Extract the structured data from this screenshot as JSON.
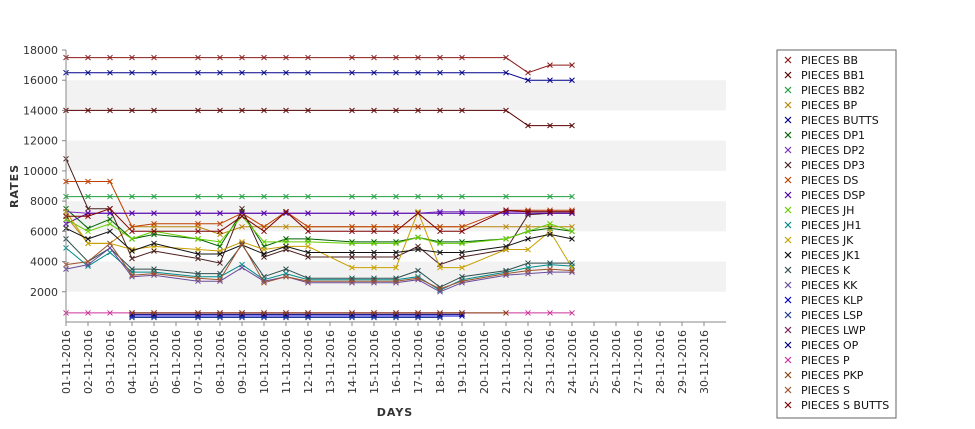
{
  "chart_data": {
    "type": "line",
    "title": "",
    "xlabel": "DAYS",
    "ylabel": "RATES",
    "ylim": [
      0,
      18000
    ],
    "yticks": [
      2000,
      4000,
      6000,
      8000,
      10000,
      12000,
      14000,
      16000,
      18000
    ],
    "grid": "alternating horizontal bands",
    "legend_position": "right",
    "categories": [
      "01-11-2016",
      "02-11-2016",
      "03-11-2016",
      "04-11-2016",
      "05-11-2016",
      "06-11-2016",
      "07-11-2016",
      "08-11-2016",
      "09-11-2016",
      "10-11-2016",
      "11-11-2016",
      "12-11-2016",
      "13-11-2016",
      "14-11-2016",
      "15-11-2016",
      "16-11-2016",
      "17-11-2016",
      "18-11-2016",
      "19-11-2016",
      "20-11-2016",
      "21-11-2016",
      "22-11-2016",
      "23-11-2016",
      "24-11-2016",
      "25-11-2016",
      "26-11-2016",
      "27-11-2016",
      "28-11-2016",
      "29-11-2016",
      "30-11-2016"
    ],
    "series": [
      {
        "name": "PIECES BB",
        "color": "#8B1A1A",
        "values": [
          17500,
          17500,
          17500,
          17500,
          17500,
          null,
          17500,
          17500,
          17500,
          17500,
          17500,
          17500,
          null,
          17500,
          17500,
          17500,
          17500,
          17500,
          17500,
          null,
          17500,
          16500,
          17000,
          17000,
          null,
          null,
          null,
          null,
          null,
          null
        ]
      },
      {
        "name": "PIECES BB1",
        "color": "#5A0000",
        "values": [
          14000,
          14000,
          14000,
          14000,
          14000,
          null,
          14000,
          14000,
          14000,
          14000,
          14000,
          14000,
          null,
          14000,
          14000,
          14000,
          14000,
          14000,
          14000,
          null,
          14000,
          13000,
          13000,
          13000,
          null,
          null,
          null,
          null,
          null,
          null
        ]
      },
      {
        "name": "PIECES BB2",
        "color": "#1E9E3C",
        "values": [
          8300,
          8300,
          8300,
          8300,
          8300,
          null,
          8300,
          8300,
          8300,
          8300,
          8300,
          8300,
          null,
          8300,
          8300,
          8300,
          8300,
          8300,
          8300,
          null,
          8300,
          null,
          8300,
          8300,
          null,
          null,
          null,
          null,
          null,
          null
        ]
      },
      {
        "name": "PIECES BP",
        "color": "#B8860B",
        "values": [
          7000,
          5200,
          5200,
          6300,
          6300,
          null,
          6300,
          5800,
          6300,
          6300,
          6300,
          6300,
          null,
          6300,
          6300,
          6300,
          6300,
          6300,
          6300,
          null,
          6300,
          6300,
          6300,
          6300,
          null,
          null,
          null,
          null,
          null,
          null
        ]
      },
      {
        "name": "PIECES BUTTS",
        "color": "#00008B",
        "values": [
          16500,
          16500,
          16500,
          16500,
          16500,
          null,
          16500,
          16500,
          16500,
          16500,
          16500,
          16500,
          null,
          16500,
          16500,
          16500,
          16500,
          16500,
          16500,
          null,
          16500,
          16000,
          16000,
          16000,
          null,
          null,
          null,
          null,
          null,
          null
        ]
      },
      {
        "name": "PIECES DP1",
        "color": "#006400",
        "values": [
          7500,
          6200,
          6800,
          5500,
          5800,
          null,
          5500,
          5000,
          7300,
          5000,
          5500,
          5500,
          null,
          5300,
          5300,
          5300,
          5600,
          5300,
          5300,
          null,
          5500,
          6000,
          6200,
          6000,
          null,
          null,
          null,
          null,
          null,
          null
        ]
      },
      {
        "name": "PIECES DP2",
        "color": "#7B2FBE",
        "values": [
          7300,
          7200,
          7200,
          7200,
          7200,
          null,
          7200,
          7200,
          7200,
          7200,
          7200,
          7200,
          null,
          7200,
          7200,
          7200,
          7200,
          7300,
          7300,
          null,
          7300,
          7300,
          7300,
          7300,
          null,
          null,
          null,
          null,
          null,
          null
        ]
      },
      {
        "name": "PIECES DP3",
        "color": "#4B1E1E",
        "values": [
          10800,
          7500,
          7500,
          4200,
          4700,
          null,
          4200,
          3900,
          7500,
          4300,
          4800,
          4300,
          null,
          4300,
          4300,
          4300,
          5000,
          3800,
          4300,
          null,
          4800,
          7100,
          7200,
          7200,
          null,
          null,
          null,
          null,
          null,
          null
        ]
      },
      {
        "name": "PIECES DS",
        "color": "#C04000",
        "values": [
          9300,
          9300,
          9300,
          6300,
          6500,
          null,
          6500,
          6500,
          7200,
          6300,
          7300,
          6300,
          null,
          6300,
          6300,
          6300,
          6300,
          6300,
          6300,
          null,
          7400,
          7400,
          7400,
          7400,
          null,
          null,
          null,
          null,
          null,
          null
        ]
      },
      {
        "name": "PIECES DSP",
        "color": "#5500AA",
        "values": [
          6500,
          7200,
          7200,
          7200,
          7200,
          null,
          7200,
          7200,
          7200,
          7200,
          7200,
          7200,
          null,
          7200,
          7200,
          7200,
          7200,
          7200,
          7200,
          null,
          7200,
          7200,
          7200,
          7200,
          null,
          null,
          null,
          null,
          null,
          null
        ]
      },
      {
        "name": "PIECES JH",
        "color": "#66CC00",
        "values": [
          6800,
          6000,
          6500,
          5500,
          6000,
          null,
          5500,
          5300,
          7000,
          5300,
          5300,
          5300,
          null,
          5200,
          5200,
          5200,
          5600,
          5200,
          5200,
          null,
          5500,
          6000,
          6500,
          6000,
          null,
          null,
          null,
          null,
          null,
          null
        ]
      },
      {
        "name": "PIECES JH1",
        "color": "#008B8B",
        "values": [
          4900,
          3700,
          4600,
          3300,
          3300,
          null,
          3000,
          3000,
          3800,
          2800,
          3200,
          2800,
          null,
          2800,
          2800,
          2800,
          3000,
          2100,
          2800,
          null,
          3300,
          3600,
          3800,
          3700,
          null,
          null,
          null,
          null,
          null,
          null
        ]
      },
      {
        "name": "PIECES JK",
        "color": "#C8A000",
        "values": [
          7300,
          5200,
          5200,
          4800,
          5000,
          null,
          4800,
          4700,
          5300,
          4800,
          5000,
          5000,
          null,
          3600,
          3600,
          3600,
          7300,
          3600,
          3600,
          null,
          4800,
          4800,
          6000,
          3600,
          null,
          null,
          null,
          null,
          null,
          null
        ]
      },
      {
        "name": "PIECES JK1",
        "color": "#111111",
        "values": [
          6200,
          5500,
          6000,
          4700,
          5200,
          null,
          4500,
          4500,
          5100,
          4500,
          5000,
          4600,
          null,
          4600,
          4600,
          4600,
          4800,
          4600,
          4600,
          null,
          5000,
          5500,
          5800,
          5500,
          null,
          null,
          null,
          null,
          null,
          null
        ]
      },
      {
        "name": "PIECES K",
        "color": "#2F4F4F",
        "values": [
          5500,
          4000,
          4900,
          3500,
          3500,
          null,
          3200,
          3200,
          5100,
          3000,
          3500,
          2900,
          null,
          2900,
          2900,
          2900,
          3400,
          2300,
          3000,
          null,
          3400,
          3900,
          3900,
          3900,
          null,
          null,
          null,
          null,
          null,
          null
        ]
      },
      {
        "name": "PIECES KK",
        "color": "#6A4C9C",
        "values": [
          3500,
          3800,
          4900,
          3000,
          3100,
          null,
          2700,
          2700,
          3600,
          2700,
          3000,
          2600,
          null,
          2600,
          2600,
          2600,
          2800,
          2000,
          2600,
          null,
          3100,
          3200,
          3300,
          3300,
          null,
          null,
          null,
          null,
          null,
          null
        ]
      },
      {
        "name": "PIECES KLP",
        "color": "#0000CD",
        "values": [
          null,
          null,
          null,
          400,
          400,
          null,
          400,
          400,
          400,
          400,
          400,
          400,
          null,
          400,
          400,
          400,
          400,
          400,
          400,
          null,
          null,
          null,
          null,
          null,
          null,
          null,
          null,
          null,
          null,
          null
        ]
      },
      {
        "name": "PIECES LSP",
        "color": "#1F3A93",
        "values": [
          null,
          null,
          null,
          300,
          300,
          null,
          300,
          300,
          300,
          300,
          300,
          300,
          null,
          300,
          300,
          300,
          300,
          300,
          null,
          null,
          null,
          null,
          null,
          null,
          null,
          null,
          null,
          null,
          null,
          null
        ]
      },
      {
        "name": "PIECES LWP",
        "color": "#7A1F5C",
        "values": [
          null,
          null,
          null,
          600,
          600,
          null,
          600,
          600,
          600,
          600,
          600,
          600,
          null,
          600,
          600,
          600,
          600,
          600,
          600,
          null,
          null,
          null,
          null,
          null,
          null,
          null,
          null,
          null,
          null,
          null
        ]
      },
      {
        "name": "PIECES OP",
        "color": "#000080",
        "values": [
          null,
          null,
          null,
          500,
          500,
          null,
          500,
          500,
          500,
          500,
          500,
          500,
          null,
          500,
          500,
          500,
          500,
          500,
          500,
          null,
          null,
          null,
          null,
          null,
          null,
          null,
          null,
          null,
          null,
          null
        ]
      },
      {
        "name": "PIECES P",
        "color": "#CC3399",
        "values": [
          600,
          600,
          600,
          600,
          600,
          null,
          600,
          600,
          600,
          600,
          600,
          600,
          null,
          600,
          600,
          600,
          600,
          600,
          600,
          null,
          600,
          600,
          600,
          600,
          null,
          null,
          null,
          null,
          null,
          null
        ]
      },
      {
        "name": "PIECES PKP",
        "color": "#8B4513",
        "values": [
          null,
          null,
          null,
          600,
          600,
          null,
          600,
          600,
          600,
          600,
          600,
          600,
          null,
          600,
          600,
          600,
          600,
          600,
          600,
          null,
          600,
          null,
          null,
          null,
          null,
          null,
          null,
          null,
          null,
          null
        ]
      },
      {
        "name": "PIECES S",
        "color": "#A0522D",
        "values": [
          3800,
          4000,
          5200,
          3100,
          3200,
          null,
          2900,
          2800,
          5200,
          2600,
          3000,
          2700,
          null,
          2700,
          2700,
          2700,
          2900,
          2200,
          2700,
          null,
          3200,
          3400,
          3500,
          3400,
          null,
          null,
          null,
          null,
          null,
          null
        ]
      },
      {
        "name": "PIECES S BUTTS",
        "color": "#7F0000",
        "values": [
          7000,
          7000,
          7500,
          6000,
          6000,
          null,
          6000,
          6000,
          7000,
          6000,
          7300,
          6000,
          null,
          6000,
          6000,
          6000,
          7200,
          6000,
          6000,
          null,
          7400,
          7300,
          7300,
          7300,
          null,
          null,
          null,
          null,
          null,
          null
        ]
      }
    ]
  }
}
